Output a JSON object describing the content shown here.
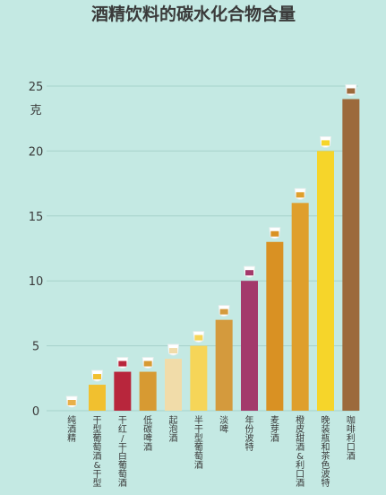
{
  "chart_data": {
    "type": "bar",
    "title": "酒精饮料的碳水化合物含量",
    "ylabel": "克",
    "ylim": [
      0,
      25
    ],
    "yticks": [
      0,
      5,
      10,
      15,
      20,
      25
    ],
    "grid": true,
    "categories": [
      "纯酒精",
      "干型葡萄酒&干型雪利",
      "干红/干白葡萄酒",
      "低碳啤酒",
      "起泡酒",
      "半干型葡萄酒",
      "淡啤",
      "年份波特",
      "麦芽酒",
      "橙皮甜酒&利口酒",
      "晚装瓶和茶色波特",
      "咖啡利口酒"
    ],
    "values": [
      0,
      2,
      3,
      3,
      4,
      5,
      7,
      10,
      13,
      16,
      20,
      24
    ],
    "colors": [
      "#e8b04a",
      "#f1c02f",
      "#b8263c",
      "#d79a32",
      "#f1dca9",
      "#f6d558",
      "#d49a3d",
      "#a3396b",
      "#d99123",
      "#df9f2c",
      "#f6d52a",
      "#9c6a3c"
    ]
  }
}
